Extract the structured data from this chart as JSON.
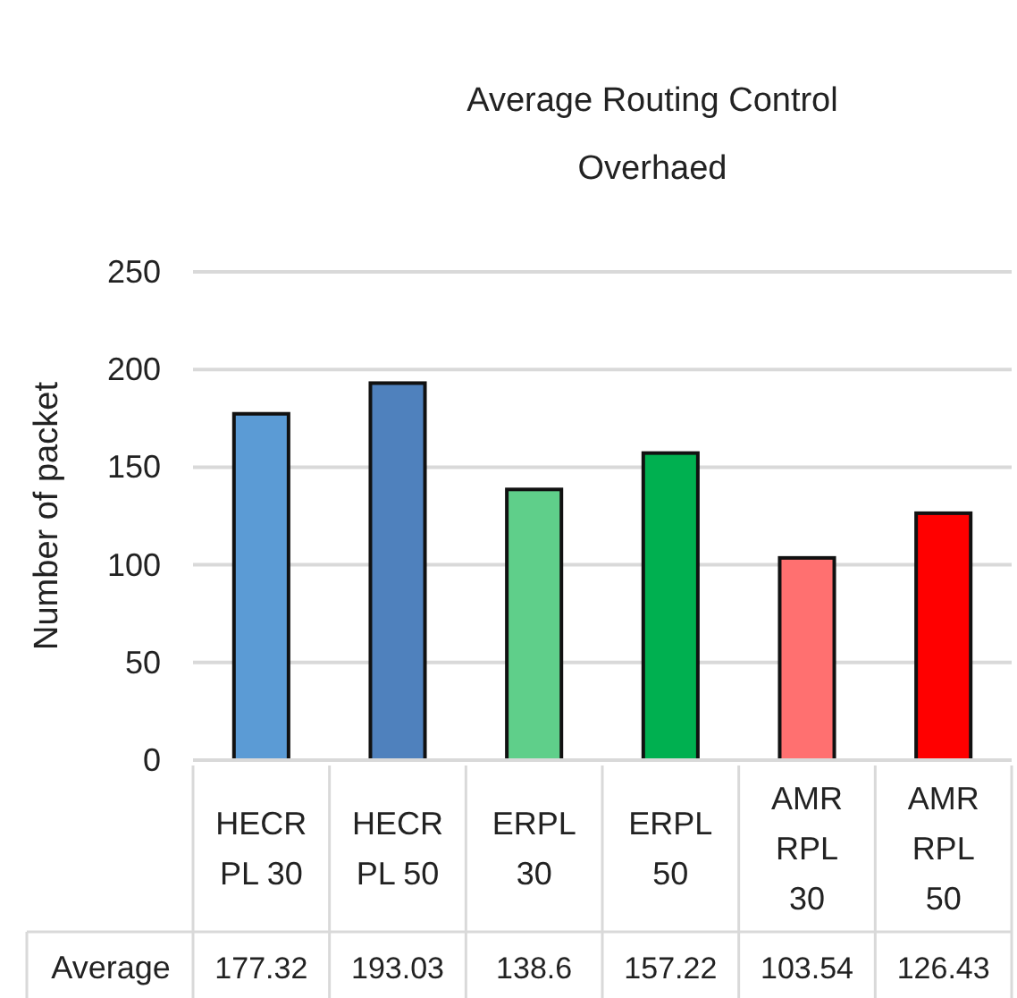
{
  "chart_data": {
    "type": "bar",
    "title": "Average Routing Control Overhaed",
    "ylabel": "Number of packet",
    "categories": [
      "HECR PL 30",
      "HECR PL 50",
      "ERPL 30",
      "ERPL 50",
      "AMR RPL 30",
      "AMR RPL 50"
    ],
    "series": [
      {
        "name": "Average",
        "values": [
          177.32,
          193.03,
          138.6,
          157.22,
          103.54,
          126.43
        ],
        "colors": [
          "#5b9bd5",
          "#4f81bd",
          "#5fcf8a",
          "#00b050",
          "#ff7070",
          "#ff0000"
        ]
      }
    ],
    "ylim": [
      0,
      250
    ],
    "yticks": [
      0,
      50,
      100,
      150,
      200,
      250
    ],
    "grid": "y",
    "data_labels": true
  }
}
